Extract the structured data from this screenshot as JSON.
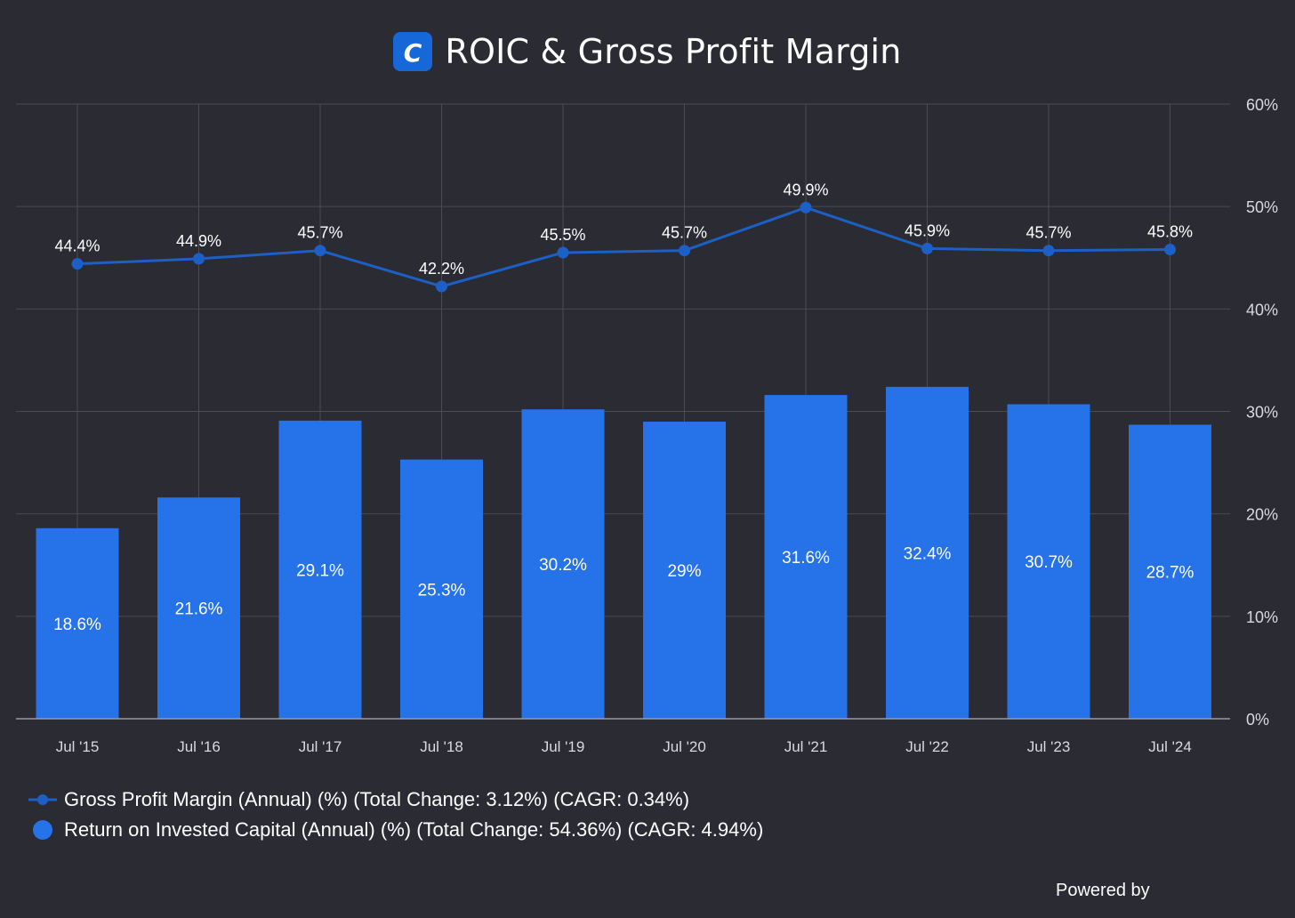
{
  "header": {
    "title": "ROIC & Gross Profit Margin",
    "logo_letter": "C",
    "logo_color": "#1668d8"
  },
  "footer": {
    "powered_by": "Powered by"
  },
  "colors": {
    "background": "#2a2b33",
    "bar": "#2672e8",
    "line": "#1c5fc7",
    "grid": "#4a4b55",
    "tick_text": "#d9d9de"
  },
  "chart_data": {
    "type": "bar",
    "title": "ROIC & Gross Profit Margin",
    "xlabel": "",
    "ylabel": "",
    "ylim": [
      0,
      60
    ],
    "y_ticks": [
      "0%",
      "10%",
      "20%",
      "30%",
      "40%",
      "50%",
      "60%"
    ],
    "y_axis_position": "right",
    "grid": true,
    "legend_position": "bottom-left",
    "categories": [
      "Jul '15",
      "Jul '16",
      "Jul '17",
      "Jul '18",
      "Jul '19",
      "Jul '20",
      "Jul '21",
      "Jul '22",
      "Jul '23",
      "Jul '24"
    ],
    "series": [
      {
        "name": "Gross Profit Margin (Annual) (%) (Total Change: 3.12%) (CAGR: 0.34%)",
        "type": "line",
        "values": [
          44.4,
          44.9,
          45.7,
          42.2,
          45.5,
          45.7,
          49.9,
          45.9,
          45.7,
          45.8
        ],
        "labels": [
          "44.4%",
          "44.9%",
          "45.7%",
          "42.2%",
          "45.5%",
          "45.7%",
          "49.9%",
          "45.9%",
          "45.7%",
          "45.8%"
        ]
      },
      {
        "name": "Return on Invested Capital (Annual) (%) (Total Change: 54.36%) (CAGR: 4.94%)",
        "type": "bar",
        "values": [
          18.6,
          21.6,
          29.1,
          25.3,
          30.2,
          29,
          31.6,
          32.4,
          30.7,
          28.7
        ],
        "labels": [
          "18.6%",
          "21.6%",
          "29.1%",
          "25.3%",
          "30.2%",
          "29%",
          "31.6%",
          "32.4%",
          "30.7%",
          "28.7%"
        ]
      }
    ]
  }
}
